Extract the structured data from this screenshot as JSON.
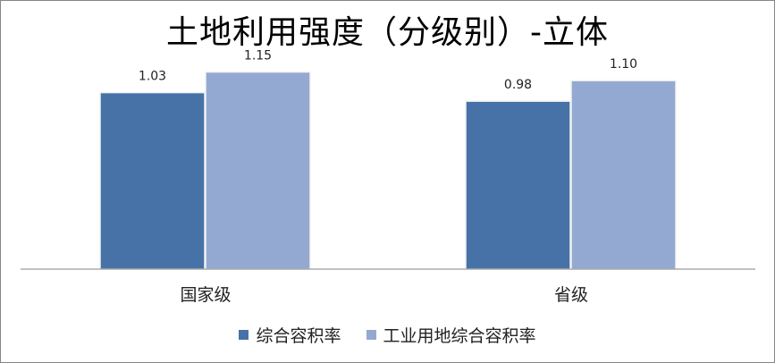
{
  "chart_data": {
    "type": "bar",
    "title": "土地利用强度（分级别）-立体",
    "categories": [
      "国家级",
      "省级"
    ],
    "series": [
      {
        "name": "综合容积率",
        "values": [
          1.03,
          0.98
        ],
        "labels": [
          "1.03",
          "0.98"
        ],
        "color": "#4672A8"
      },
      {
        "name": "工业用地综合容积率",
        "values": [
          1.15,
          1.1
        ],
        "labels": [
          "1.15",
          "1.10"
        ],
        "color": "#94A9D2"
      }
    ],
    "ylim": [
      0,
      1.2
    ],
    "grid": false,
    "legend_position": "bottom",
    "axis_color": "#868686",
    "bar_highlight_color": "#F2F2F2"
  }
}
